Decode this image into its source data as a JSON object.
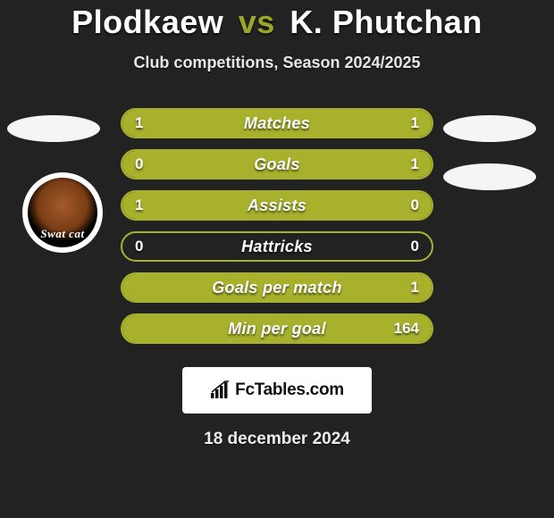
{
  "header": {
    "player1": "Plodkaew",
    "vs": "vs",
    "player2": "K. Phutchan",
    "subtitle": "Club competitions, Season 2024/2025"
  },
  "colors": {
    "accent": "#a7b12c",
    "bar_border": "#a7b12c",
    "background": "#222222",
    "text": "#ffffff",
    "ellipse": "#f5f5f5",
    "badge_bg": "#ffffff"
  },
  "club_badge": {
    "label": "Swat cat"
  },
  "stats": [
    {
      "label": "Matches",
      "left_val": "1",
      "right_val": "1",
      "left_pct": 50,
      "right_pct": 50
    },
    {
      "label": "Goals",
      "left_val": "0",
      "right_val": "1",
      "left_pct": 18,
      "right_pct": 82
    },
    {
      "label": "Assists",
      "left_val": "1",
      "right_val": "0",
      "left_pct": 82,
      "right_pct": 18
    },
    {
      "label": "Hattricks",
      "left_val": "0",
      "right_val": "0",
      "left_pct": 0,
      "right_pct": 0
    },
    {
      "label": "Goals per match",
      "left_val": "",
      "right_val": "1",
      "left_pct": 0,
      "right_pct": 100
    },
    {
      "label": "Min per goal",
      "left_val": "",
      "right_val": "164",
      "left_pct": 0,
      "right_pct": 100
    }
  ],
  "footer": {
    "site_label": "FcTables.com",
    "date": "18 december 2024"
  }
}
